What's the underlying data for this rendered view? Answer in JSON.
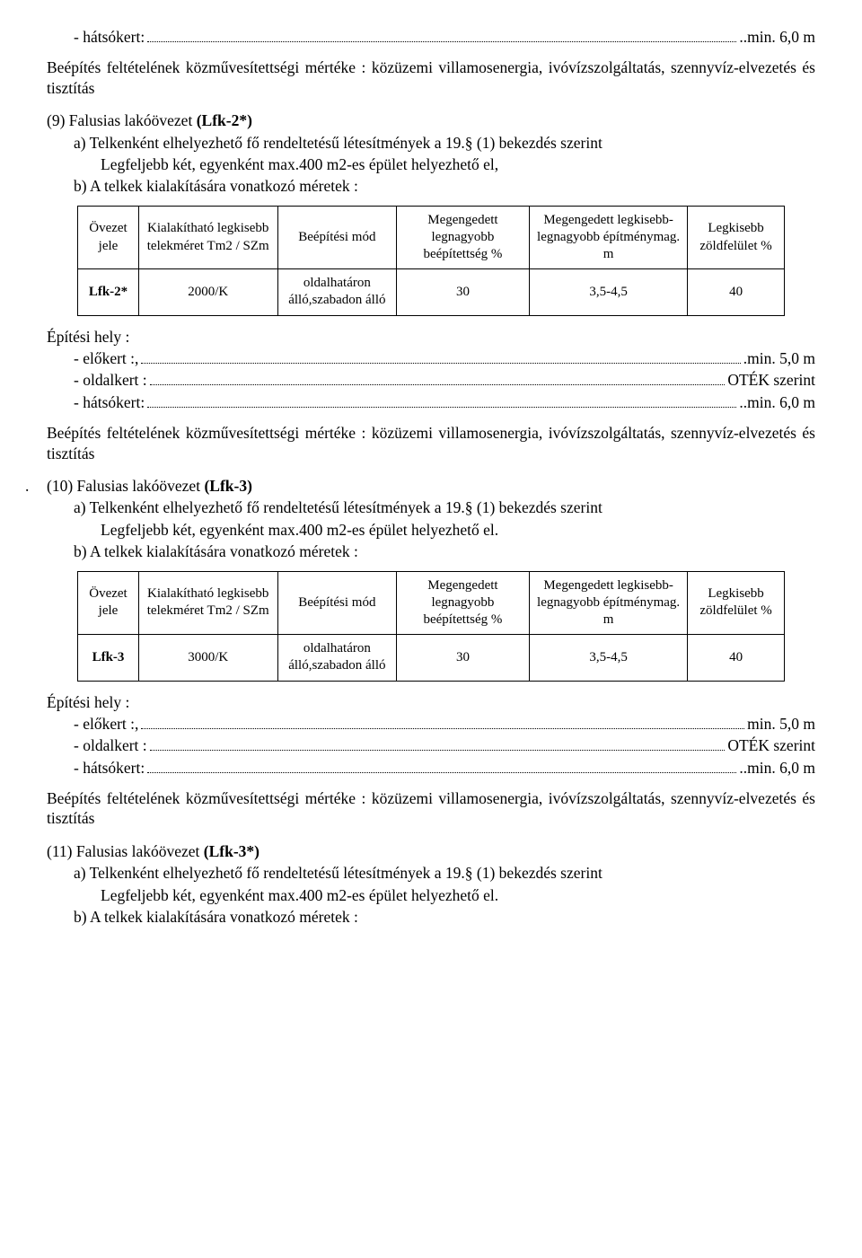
{
  "line_top_hatsokert": {
    "label": "- hátsókert:",
    "value": "..min. 6,0 m"
  },
  "para_kozmu": "Beépítés feltételének közművesítettségi mértéke : közüzemi villamosenergia, ivóvízszolgáltatás, szennyvíz-elvezetés és tisztítás",
  "sec9": {
    "title_a": "(9) Falusias lakóövezet ",
    "title_b": "(Lfk-2*)",
    "a": "a) Telkenként elhelyezhető fő rendeltetésű létesítmények a 19.§ (1) bekezdés szerint",
    "a2": "Legfeljebb két, egyenként max.400 m2-es épület helyezhető el,",
    "b": "b)  A telkek kialakítására vonatkozó méretek :"
  },
  "table_headers": {
    "c1": "Övezet jele",
    "c2": "Kialakítható legkisebb telekméret Tm2 / SZm",
    "c3": "Beépítési mód",
    "c4": "Megengedett legnagyobb beépítettség %",
    "c5": "Megengedett legkisebb-legnagyobb építménymag. m",
    "c6": "Legkisebb zöldfelület %"
  },
  "table9_row": {
    "c1": "Lfk-2*",
    "c2": "2000/K",
    "c3": "oldalhatáron álló,szabadon álló",
    "c4": "30",
    "c5": "3,5-4,5",
    "c6": "40"
  },
  "epitesihely": "Építési hely :",
  "elokert": {
    "label": "- előkert :,",
    "value": ".min.  5,0 m"
  },
  "oldalkert": {
    "label": "- oldalkert :",
    "value": " OTÉK szerint"
  },
  "hatsokert": {
    "label": "- hátsókert:",
    "value": "..min. 6,0 m"
  },
  "sec10": {
    "title_a": "(10) Falusias lakóövezet ",
    "title_b": "(Lfk-3)",
    "a": "a) Telkenként elhelyezhető fő rendeltetésű létesítmények a 19.§ (1) bekezdés szerint",
    "a2": "Legfeljebb két, egyenként max.400 m2-es épület helyezhető el.",
    "b": "b)  A telkek kialakítására vonatkozó méretek :"
  },
  "table10_row": {
    "c1": "Lfk-3",
    "c2": "3000/K",
    "c3": "oldalhatáron álló,szabadon álló",
    "c4": "30",
    "c5": "3,5-4,5",
    "c6": "40"
  },
  "elokert2": {
    "label": "- előkert :,",
    "value": " min.  5,0 m"
  },
  "oldalkert2": {
    "label": "- oldalkert :",
    "value": " OTÉK szerint"
  },
  "hatsokert2": {
    "label": "- hátsókert:",
    "value": "..min. 6,0 m"
  },
  "sec11": {
    "title_a": "(11) Falusias lakóövezet ",
    "title_b": "(Lfk-3*)",
    "a": "a) Telkenként elhelyezhető fő rendeltetésű létesítmények a 19.§ (1) bekezdés szerint",
    "a2": "Legfeljebb két, egyenként max.400 m2-es épület helyezhető el.",
    "b": "b)  A telkek kialakítására vonatkozó méretek :"
  }
}
